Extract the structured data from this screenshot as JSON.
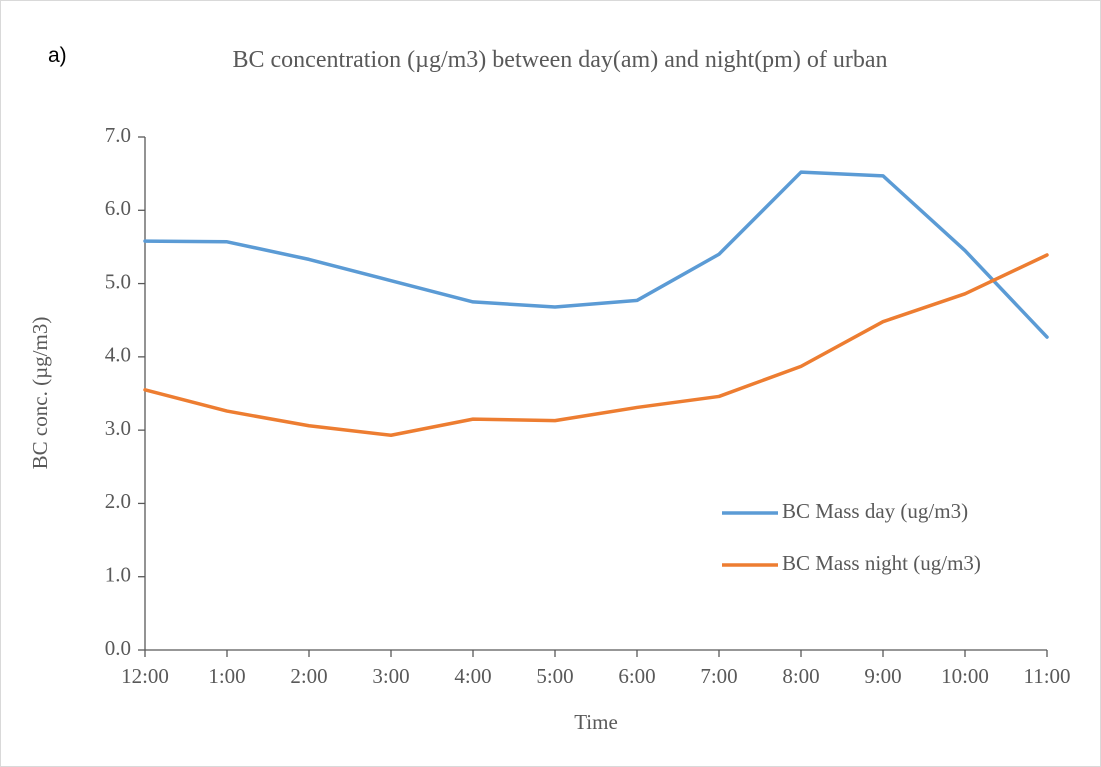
{
  "panel_label": "a)",
  "chart_data": {
    "type": "line",
    "title": "BC concentration (µg/m3) between day(am) and night(pm) of urban",
    "x_label": "Time",
    "y_label": "BC conc. (µg/m3)",
    "categories": [
      "12:00",
      "1:00",
      "2:00",
      "3:00",
      "4:00",
      "5:00",
      "6:00",
      "7:00",
      "8:00",
      "9:00",
      "10:00",
      "11:00"
    ],
    "series": [
      {
        "name": "BC Mass day (ug/m3)",
        "color": "#5b9bd5",
        "values": [
          5.58,
          5.57,
          5.33,
          5.04,
          4.75,
          4.68,
          4.77,
          5.4,
          6.52,
          6.47,
          5.45,
          4.27
        ]
      },
      {
        "name": "BC Mass night (ug/m3)",
        "color": "#ed7d31",
        "values": [
          3.55,
          3.26,
          3.06,
          2.93,
          3.15,
          3.13,
          3.31,
          3.46,
          3.87,
          4.48,
          4.86,
          5.39
        ]
      }
    ],
    "ylim": [
      0,
      7
    ],
    "yticks": [
      {
        "value": 0,
        "label": "0.0"
      },
      {
        "value": 1,
        "label": "1.0"
      },
      {
        "value": 2,
        "label": "2.0"
      },
      {
        "value": 3,
        "label": "3.0"
      },
      {
        "value": 4,
        "label": "4.0"
      },
      {
        "value": 5,
        "label": "5.0"
      },
      {
        "value": 6,
        "label": "6.0"
      },
      {
        "value": 7,
        "label": "7.0"
      }
    ],
    "grid": false
  }
}
